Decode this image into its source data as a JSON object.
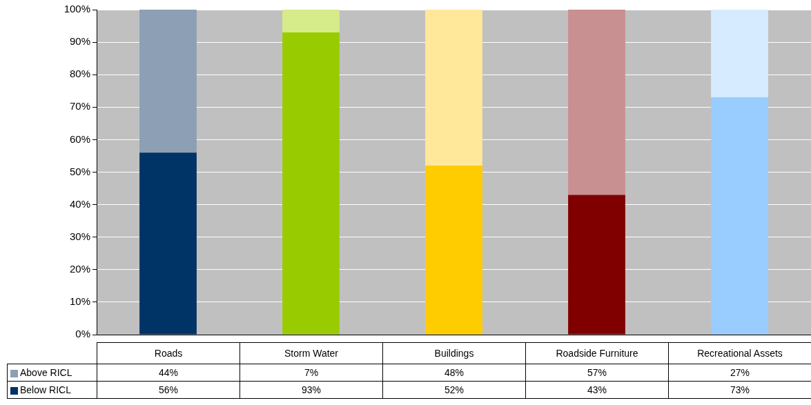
{
  "chart_data": {
    "type": "bar",
    "stacked": true,
    "categories": [
      "Roads",
      "Storm Water",
      "Buildings",
      "Roadside Furniture",
      "Recreational Assets"
    ],
    "series": [
      {
        "name": "Below RICL",
        "values": [
          56,
          93,
          52,
          43,
          73
        ],
        "colors": [
          "#003366",
          "#99cc00",
          "#ffcc00",
          "#800000",
          "#99ccff"
        ],
        "value_labels": [
          "56%",
          "93%",
          "52%",
          "43%",
          "73%"
        ]
      },
      {
        "name": "Above RICL",
        "values": [
          44,
          7,
          48,
          57,
          27
        ],
        "colors": [
          "#8c9fb5",
          "#d6eb8a",
          "#ffe89a",
          "#c89090",
          "#d6ebff"
        ],
        "value_labels": [
          "44%",
          "7%",
          "48%",
          "57%",
          "27%"
        ]
      }
    ],
    "ylim": [
      0,
      100
    ],
    "yticks": [
      {
        "value": 0,
        "label": "0%"
      },
      {
        "value": 10,
        "label": "10%"
      },
      {
        "value": 20,
        "label": "20%"
      },
      {
        "value": 30,
        "label": "30%"
      },
      {
        "value": 40,
        "label": "40%"
      },
      {
        "value": 50,
        "label": "50%"
      },
      {
        "value": 60,
        "label": "60%"
      },
      {
        "value": 70,
        "label": "70%"
      },
      {
        "value": 80,
        "label": "80%"
      },
      {
        "value": 90,
        "label": "90%"
      },
      {
        "value": 100,
        "label": "100%"
      }
    ],
    "grid": "y",
    "legend": "bottom left"
  }
}
